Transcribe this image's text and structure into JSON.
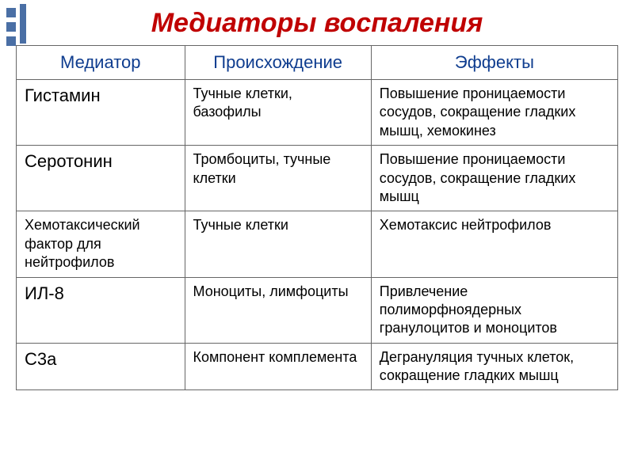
{
  "title": "Медиаторы воспаления",
  "headers": {
    "mediator": "Медиатор",
    "origin": "Происхождение",
    "effects": "Эффекты"
  },
  "rows": [
    {
      "mediator": "Гистамин",
      "mediator_size": "large",
      "origin": "Тучные клетки, базофилы",
      "effects": "Повышение проницаемости сосудов, сокращение гладких мышц, хемокинез"
    },
    {
      "mediator": "Серотонин",
      "mediator_size": "large",
      "origin": "Тромбоциты, тучные клетки",
      "effects": "Повышение проницаемости сосудов, сокращение гладких мышц"
    },
    {
      "mediator": "Хемотаксический фактор для нейтрофилов",
      "mediator_size": "small",
      "origin": "Тучные клетки",
      "effects": "Хемотаксис нейтрофилов"
    },
    {
      "mediator": "ИЛ-8",
      "mediator_size": "large",
      "origin": "Моноциты, лимфоциты",
      "effects": "Привлечение полиморфноядерных гранулоцитов и моноцитов"
    },
    {
      "mediator": "С3а",
      "mediator_size": "large",
      "origin": "Компонент комплемента",
      "effects": "Дегрануляция тучных клеток, сокращение гладких мышц"
    }
  ],
  "colors": {
    "title": "#c00000",
    "header_text": "#0f3d8f",
    "border": "#666666",
    "text": "#000000",
    "decor": "#4a6fa5"
  }
}
